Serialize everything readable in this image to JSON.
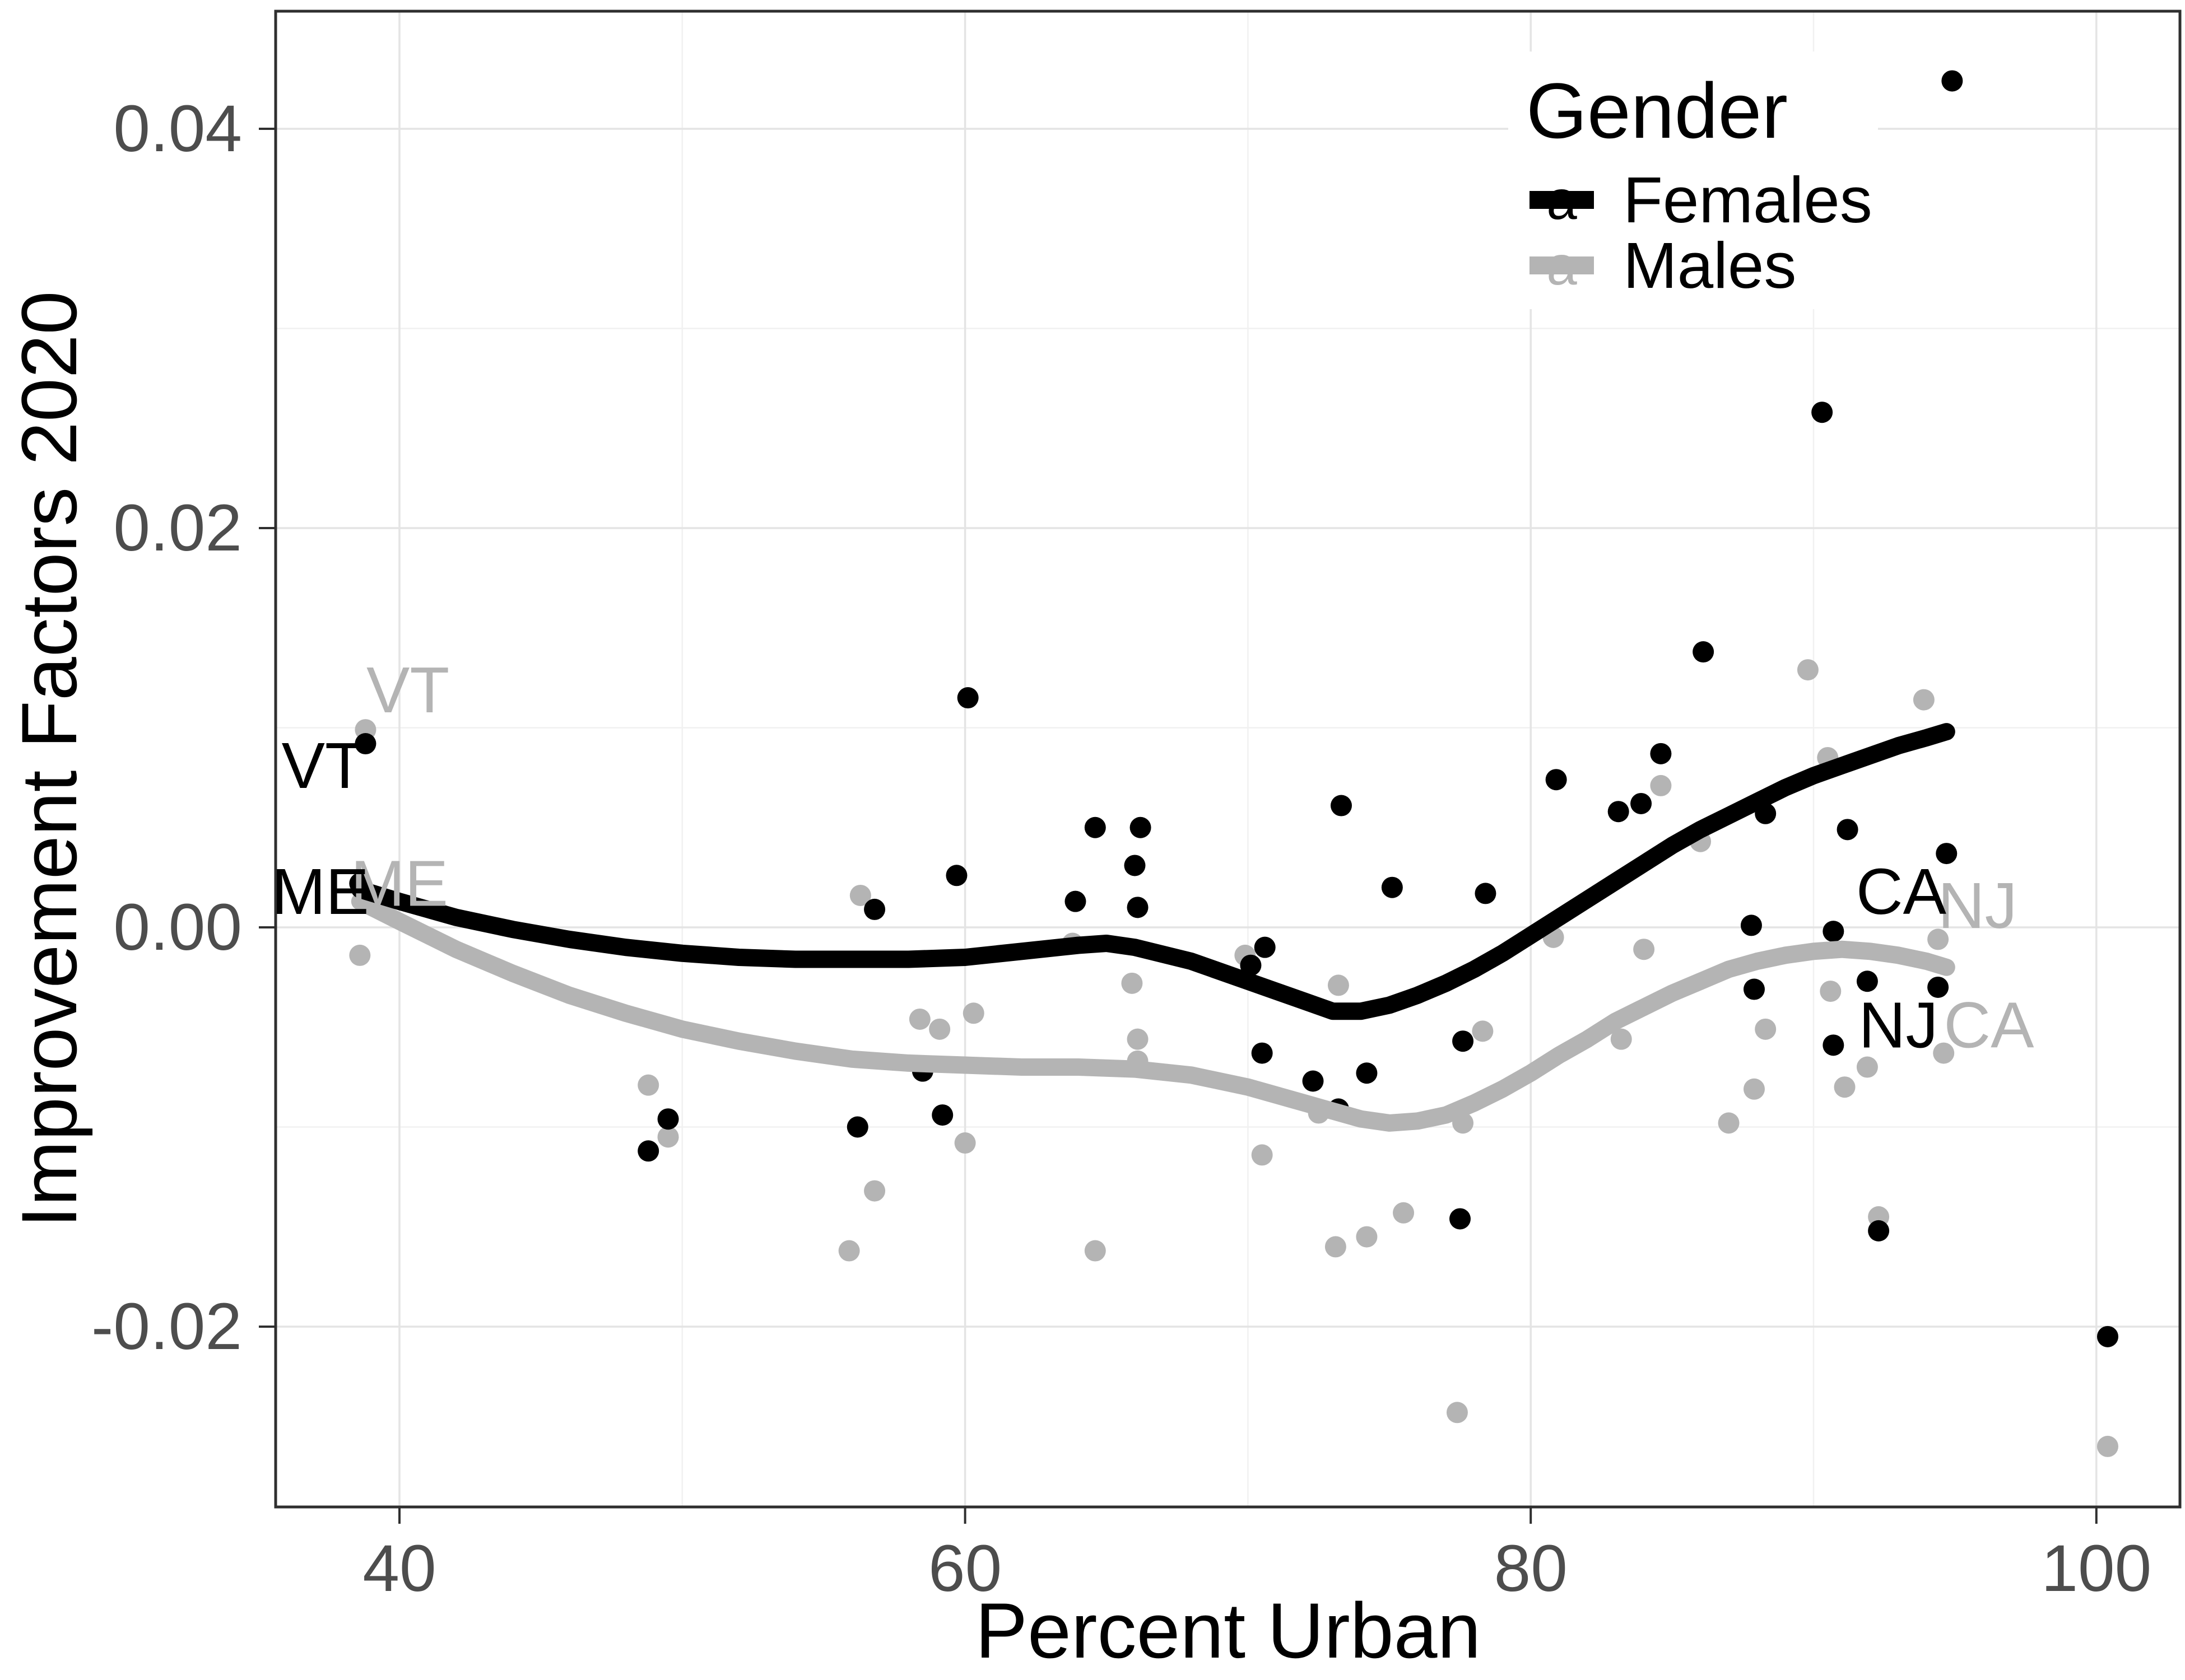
{
  "chart_data": {
    "type": "scatter",
    "title": "",
    "xlabel": "Percent Urban",
    "ylabel": "Improvement Factors 2020",
    "xlim": [
      35.6,
      103.0
    ],
    "ylim": [
      -0.029,
      0.0459
    ],
    "grid": "on",
    "x_ticks": {
      "values": [
        40,
        60,
        80,
        100
      ],
      "labels": [
        "40",
        "60",
        "80",
        "100"
      ],
      "minor": [
        50,
        70,
        90
      ]
    },
    "y_ticks": {
      "values": [
        0.04,
        0.02,
        0.0,
        -0.02
      ],
      "labels": [
        "0.04",
        "0.02",
        "0.00",
        "-0.02"
      ],
      "minor": [
        0.03,
        0.01,
        -0.01
      ]
    },
    "legend": {
      "title": "Gender",
      "position": "top-right-inside",
      "key_glyph": "a",
      "entries": [
        {
          "label": "Females",
          "color": "#000000"
        },
        {
          "label": "Males",
          "color": "#B4B4B4"
        }
      ]
    },
    "colors": {
      "females": "#000000",
      "males": "#B4B4B4",
      "tick_text": "#4D4D4D",
      "grid_major": "#E4E4E4",
      "grid_minor": "#F1F1F1",
      "panel_border": "#2F2F2F",
      "background": "#FFFFFF"
    },
    "series": [
      {
        "name": "Females",
        "geom": "point",
        "color": "#000000",
        "points": [
          [
            38.8,
            0.0092
          ],
          [
            38.6,
            0.0022
          ],
          [
            48.8,
            -0.0112
          ],
          [
            49.5,
            -0.0096
          ],
          [
            56.8,
            0.0009
          ],
          [
            56.2,
            -0.01
          ],
          [
            58.5,
            -0.0072
          ],
          [
            59.2,
            -0.0094
          ],
          [
            59.7,
            0.0026
          ],
          [
            60.1,
            0.0115
          ],
          [
            63.9,
            0.0013
          ],
          [
            64.6,
            0.005
          ],
          [
            66.2,
            0.005
          ],
          [
            66.0,
            0.0031
          ],
          [
            66.1,
            0.001
          ],
          [
            70.6,
            -0.001
          ],
          [
            70.1,
            -0.0019
          ],
          [
            70.5,
            -0.0063
          ],
          [
            72.3,
            -0.0077
          ],
          [
            73.3,
            0.0061
          ],
          [
            74.2,
            -0.0073
          ],
          [
            73.2,
            -0.0091
          ],
          [
            75.1,
            0.002
          ],
          [
            77.6,
            -0.0057
          ],
          [
            78.4,
            0.0017
          ],
          [
            77.5,
            -0.0146
          ],
          [
            80.9,
            0.0074
          ],
          [
            83.1,
            0.0058
          ],
          [
            83.9,
            0.0062
          ],
          [
            84.6,
            0.0087
          ],
          [
            86.1,
            0.0138
          ],
          [
            87.8,
            0.0001
          ],
          [
            88.3,
            0.0057
          ],
          [
            87.9,
            -0.0031
          ],
          [
            90.3,
            0.0258
          ],
          [
            90.7,
            -0.0002
          ],
          [
            90.7,
            -0.0059
          ],
          [
            91.2,
            0.0049
          ],
          [
            91.9,
            -0.0027
          ],
          [
            92.3,
            -0.0152
          ],
          [
            94.9,
            0.0424
          ],
          [
            94.7,
            0.0037
          ],
          [
            94.4,
            -0.003
          ],
          [
            100.4,
            -0.0205
          ]
        ]
      },
      {
        "name": "Males",
        "geom": "point",
        "color": "#B4B4B4",
        "points": [
          [
            38.8,
            0.0099
          ],
          [
            38.6,
            -0.0014
          ],
          [
            48.8,
            -0.0079
          ],
          [
            49.5,
            -0.0105
          ],
          [
            55.9,
            -0.0162
          ],
          [
            56.3,
            0.0016
          ],
          [
            56.8,
            -0.0132
          ],
          [
            58.4,
            -0.0046
          ],
          [
            59.1,
            -0.0051
          ],
          [
            60.3,
            -0.0043
          ],
          [
            60.0,
            -0.0108
          ],
          [
            63.8,
            -0.0008
          ],
          [
            64.6,
            -0.0162
          ],
          [
            65.9,
            -0.0028
          ],
          [
            66.1,
            -0.0056
          ],
          [
            66.1,
            -0.0067
          ],
          [
            69.9,
            -0.0014
          ],
          [
            70.5,
            -0.0114
          ],
          [
            72.5,
            -0.0093
          ],
          [
            73.1,
            -0.016
          ],
          [
            73.2,
            -0.0029
          ],
          [
            74.2,
            -0.0155
          ],
          [
            75.5,
            -0.0143
          ],
          [
            77.6,
            -0.0098
          ],
          [
            77.4,
            -0.0243
          ],
          [
            78.3,
            -0.0052
          ],
          [
            80.8,
            -0.0005
          ],
          [
            83.2,
            -0.0056
          ],
          [
            84.0,
            -0.0011
          ],
          [
            84.6,
            0.0071
          ],
          [
            86.0,
            0.0043
          ],
          [
            87.0,
            -0.0098
          ],
          [
            87.9,
            -0.0081
          ],
          [
            88.3,
            -0.0051
          ],
          [
            89.8,
            0.0129
          ],
          [
            90.5,
            0.0085
          ],
          [
            90.6,
            -0.0032
          ],
          [
            91.1,
            -0.008
          ],
          [
            91.9,
            -0.007
          ],
          [
            92.3,
            -0.0145
          ],
          [
            93.9,
            0.0114
          ],
          [
            94.4,
            -0.0006
          ],
          [
            94.6,
            -0.0063
          ],
          [
            100.4,
            -0.026
          ]
        ]
      },
      {
        "name": "Females smooth",
        "geom": "smooth-line",
        "color": "#000000",
        "points": [
          [
            38.6,
            0.0019
          ],
          [
            40,
            0.0013
          ],
          [
            42,
            0.0005
          ],
          [
            44,
            -0.0001
          ],
          [
            46,
            -0.0006
          ],
          [
            48,
            -0.001
          ],
          [
            50,
            -0.0013
          ],
          [
            52,
            -0.0015
          ],
          [
            54,
            -0.0016
          ],
          [
            56,
            -0.0016
          ],
          [
            58,
            -0.0016
          ],
          [
            60,
            -0.0015
          ],
          [
            62,
            -0.0012
          ],
          [
            64,
            -0.0009
          ],
          [
            65,
            -0.0008
          ],
          [
            66,
            -0.001
          ],
          [
            68,
            -0.0017
          ],
          [
            70,
            -0.0027
          ],
          [
            72,
            -0.0037
          ],
          [
            73,
            -0.0042
          ],
          [
            74,
            -0.0042
          ],
          [
            75,
            -0.0039
          ],
          [
            76,
            -0.0034
          ],
          [
            77,
            -0.0028
          ],
          [
            78,
            -0.0021
          ],
          [
            79,
            -0.0013
          ],
          [
            80,
            -0.0004
          ],
          [
            81,
            0.0005
          ],
          [
            82,
            0.0014
          ],
          [
            83,
            0.0023
          ],
          [
            84,
            0.0032
          ],
          [
            85,
            0.0041
          ],
          [
            86,
            0.0049
          ],
          [
            87,
            0.0056
          ],
          [
            88,
            0.0063
          ],
          [
            89,
            0.007
          ],
          [
            90,
            0.0076
          ],
          [
            91,
            0.0081
          ],
          [
            92,
            0.0086
          ],
          [
            93,
            0.0091
          ],
          [
            94,
            0.0095
          ],
          [
            94.7,
            0.0098
          ]
        ]
      },
      {
        "name": "Males smooth",
        "geom": "smooth-line",
        "color": "#B4B4B4",
        "points": [
          [
            38.6,
            0.0013
          ],
          [
            40,
            0.0003
          ],
          [
            42,
            -0.0011
          ],
          [
            44,
            -0.0023
          ],
          [
            46,
            -0.0034
          ],
          [
            48,
            -0.0043
          ],
          [
            50,
            -0.0051
          ],
          [
            52,
            -0.0057
          ],
          [
            54,
            -0.0062
          ],
          [
            56,
            -0.0066
          ],
          [
            58,
            -0.0068
          ],
          [
            60,
            -0.0069
          ],
          [
            62,
            -0.007
          ],
          [
            64,
            -0.007
          ],
          [
            66,
            -0.0071
          ],
          [
            68,
            -0.0074
          ],
          [
            70,
            -0.008
          ],
          [
            72,
            -0.0088
          ],
          [
            73,
            -0.0092
          ],
          [
            74,
            -0.0096
          ],
          [
            75,
            -0.0098
          ],
          [
            76,
            -0.0097
          ],
          [
            77,
            -0.0094
          ],
          [
            78,
            -0.0088
          ],
          [
            79,
            -0.0081
          ],
          [
            80,
            -0.0073
          ],
          [
            81,
            -0.0064
          ],
          [
            82,
            -0.0056
          ],
          [
            83,
            -0.0047
          ],
          [
            84,
            -0.004
          ],
          [
            85,
            -0.0033
          ],
          [
            86,
            -0.0027
          ],
          [
            87,
            -0.0021
          ],
          [
            88,
            -0.0017
          ],
          [
            89,
            -0.0014
          ],
          [
            90,
            -0.0012
          ],
          [
            91,
            -0.0011
          ],
          [
            92,
            -0.0012
          ],
          [
            93,
            -0.0014
          ],
          [
            94,
            -0.0017
          ],
          [
            94.7,
            -0.002
          ]
        ]
      }
    ],
    "point_labels": [
      {
        "text": "VT",
        "gender": "Males",
        "x": 40.3,
        "y": 0.0119
      },
      {
        "text": "VT",
        "gender": "Females",
        "x": 37.3,
        "y": 0.0081
      },
      {
        "text": "ME",
        "gender": "Males",
        "x": 40.0,
        "y": 0.0022
      },
      {
        "text": "ME",
        "gender": "Females",
        "x": 37.2,
        "y": 0.0018
      },
      {
        "text": "CA",
        "gender": "Females",
        "x": 93.1,
        "y": 0.0018
      },
      {
        "text": "NJ",
        "gender": "Males",
        "x": 95.8,
        "y": 0.0011
      },
      {
        "text": "NJ",
        "gender": "Females",
        "x": 93.0,
        "y": -0.0049
      },
      {
        "text": "CA",
        "gender": "Males",
        "x": 96.2,
        "y": -0.0049
      }
    ]
  }
}
